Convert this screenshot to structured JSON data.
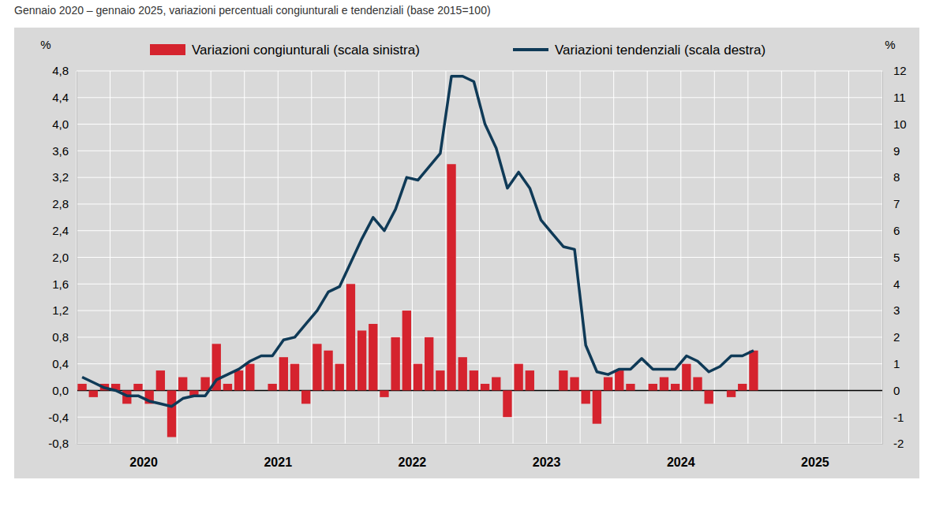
{
  "chart_data": {
    "type": "bar",
    "subtitle": "Gennaio 2020 – gennaio 2025, variazioni percentuali congiunturali e tendenziali (base 2015=100)",
    "y_label": "%",
    "y2_label": "%",
    "categories": [
      "2020",
      null,
      null,
      null,
      null,
      null,
      null,
      null,
      null,
      null,
      null,
      null,
      "2021",
      null,
      null,
      null,
      null,
      null,
      null,
      null,
      null,
      null,
      null,
      null,
      "2022",
      null,
      null,
      null,
      null,
      null,
      null,
      null,
      null,
      null,
      null,
      null,
      "2023",
      null,
      null,
      null,
      null,
      null,
      null,
      null,
      null,
      null,
      null,
      null,
      "2024",
      null,
      null,
      null,
      null,
      null,
      null,
      null,
      null,
      null,
      null,
      null,
      "2025",
      null,
      null,
      null,
      null,
      null,
      null,
      null,
      null,
      null,
      null,
      null
    ],
    "series": [
      {
        "name": "Variazioni congiunturali (scala sinistra)",
        "type": "bar",
        "axis": "y",
        "color": "#d5232e",
        "values": [
          0.1,
          -0.1,
          0.1,
          0.1,
          -0.2,
          0.1,
          -0.2,
          0.3,
          -0.7,
          0.2,
          -0.1,
          0.2,
          0.7,
          0.1,
          0.3,
          0.4,
          0.0,
          0.1,
          0.5,
          0.4,
          -0.2,
          0.7,
          0.6,
          0.4,
          1.6,
          0.9,
          1.0,
          -0.1,
          0.8,
          1.2,
          0.4,
          0.8,
          0.3,
          3.4,
          0.5,
          0.3,
          0.1,
          0.2,
          -0.4,
          0.4,
          0.3,
          0.0,
          0.0,
          0.3,
          0.2,
          -0.2,
          -0.5,
          0.2,
          0.3,
          0.1,
          0.0,
          0.1,
          0.2,
          0.1,
          0.4,
          0.2,
          -0.2,
          0.0,
          -0.1,
          0.1,
          0.6,
          null,
          null,
          null,
          null,
          null,
          null,
          null,
          null,
          null,
          null,
          null
        ]
      },
      {
        "name": "Variazioni tendenziali (scala destra)",
        "type": "line",
        "axis": "y2",
        "color": "#0f3a57",
        "values": [
          0.5,
          0.3,
          0.1,
          0.0,
          -0.2,
          -0.2,
          -0.4,
          -0.5,
          -0.6,
          -0.3,
          -0.2,
          -0.2,
          0.4,
          0.6,
          0.8,
          1.1,
          1.3,
          1.3,
          1.9,
          2.0,
          2.5,
          3.0,
          3.7,
          3.9,
          4.8,
          5.7,
          6.5,
          6.0,
          6.8,
          8.0,
          7.9,
          8.4,
          8.9,
          11.8,
          11.8,
          11.6,
          10.0,
          9.1,
          7.6,
          8.2,
          7.6,
          6.4,
          5.9,
          5.4,
          5.3,
          1.7,
          0.7,
          0.6,
          0.8,
          0.8,
          1.2,
          0.8,
          0.8,
          0.8,
          1.3,
          1.1,
          0.7,
          0.9,
          1.3,
          1.3,
          1.5,
          null,
          null,
          null,
          null,
          null,
          null,
          null,
          null,
          null,
          null,
          null
        ]
      }
    ],
    "ylim": [
      -0.8,
      4.8
    ],
    "yticks": [
      {
        "value": -0.8,
        "label": "-0,8"
      },
      {
        "value": -0.4,
        "label": "-0,4"
      },
      {
        "value": 0,
        "label": "0,0"
      },
      {
        "value": 0.4,
        "label": "0,4"
      },
      {
        "value": 0.8,
        "label": "0,8"
      },
      {
        "value": 1.2,
        "label": "1,2"
      },
      {
        "value": 1.6,
        "label": "1,6"
      },
      {
        "value": 2.0,
        "label": "2,0"
      },
      {
        "value": 2.4,
        "label": "2,4"
      },
      {
        "value": 2.8,
        "label": "2,8"
      },
      {
        "value": 3.2,
        "label": "3,2"
      },
      {
        "value": 3.6,
        "label": "3,6"
      },
      {
        "value": 4.0,
        "label": "4,0"
      },
      {
        "value": 4.4,
        "label": "4,4"
      },
      {
        "value": 4.8,
        "label": "4,8"
      }
    ],
    "y2lim": [
      -2,
      12
    ],
    "y2ticks": [
      -2,
      -1,
      0,
      1,
      2,
      3,
      4,
      5,
      6,
      7,
      8,
      9,
      10,
      11,
      12
    ],
    "grid": true,
    "legend": "top"
  }
}
